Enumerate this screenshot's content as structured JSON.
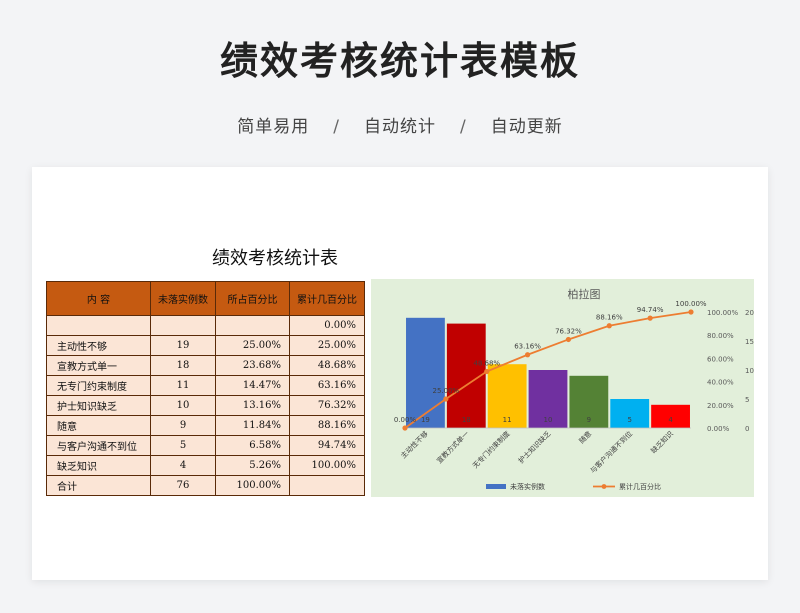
{
  "header": {
    "title": "绩效考核统计表模板",
    "tags": [
      "简单易用",
      "自动统计",
      "自动更新"
    ],
    "separator": "/"
  },
  "sheet": {
    "title": "绩效考核统计表",
    "columns": [
      "内  容",
      "未落实例数",
      "所占百分比",
      "累计几百分比"
    ],
    "rows": [
      [
        "",
        "",
        "",
        "0.00%"
      ],
      [
        "主动性不够",
        "19",
        "25.00%",
        "25.00%"
      ],
      [
        "宣教方式单一",
        "18",
        "23.68%",
        "48.68%"
      ],
      [
        "无专门约束制度",
        "11",
        "14.47%",
        "63.16%"
      ],
      [
        "护士知识缺乏",
        "10",
        "13.16%",
        "76.32%"
      ],
      [
        "随意",
        "9",
        "11.84%",
        "88.16%"
      ],
      [
        "与客户沟通不到位",
        "5",
        "6.58%",
        "94.74%"
      ],
      [
        "缺乏知识",
        "4",
        "5.26%",
        "100.00%"
      ],
      [
        "合计",
        "76",
        "100.00%",
        ""
      ]
    ]
  },
  "chart_data": {
    "type": "bar",
    "title": "柏拉图",
    "background": "#e2efda",
    "categories": [
      "主动性不够",
      "宣教方式单一",
      "无专门约束制度",
      "护士知识缺乏",
      "随意",
      "与客户沟通不到位",
      "缺乏知识"
    ],
    "bar_colors": [
      "#4472c4",
      "#c00000",
      "#ffc000",
      "#7030a0",
      "#548235",
      "#00b0f0",
      "#ff0000"
    ],
    "line_color": "#ed7d31",
    "series": [
      {
        "name": "未落实例数",
        "type": "bar",
        "values": [
          19,
          18,
          11,
          10,
          9,
          5,
          4
        ]
      },
      {
        "name": "累计几百分比",
        "type": "line",
        "x": [
          0,
          1,
          2,
          3,
          4,
          5,
          6,
          7
        ],
        "values": [
          0.0,
          25.0,
          48.68,
          63.16,
          76.32,
          88.16,
          94.74,
          100.0
        ]
      }
    ],
    "bar_labels": [
      "19",
      "18",
      "11",
      "10",
      "9",
      "5",
      "4"
    ],
    "line_labels": [
      "0.00%",
      "25.00%",
      "48.68%",
      "63.16%",
      "76.32%",
      "88.16%",
      "94.74%",
      "100.00%"
    ],
    "y_pct_ticks": [
      "0.00%",
      "20.00%",
      "40.00%",
      "60.00%",
      "80.00%",
      "100.00%"
    ],
    "y_count_ticks": [
      "0",
      "5",
      "10",
      "15",
      "20"
    ],
    "y_count_lim": [
      0,
      20
    ],
    "y_pct_lim": [
      0,
      100
    ],
    "legend_position": "bottom",
    "grid": false
  }
}
